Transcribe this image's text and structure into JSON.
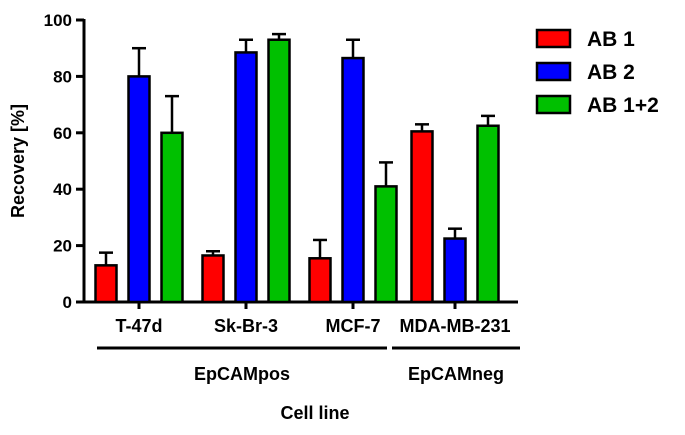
{
  "chart_data": {
    "type": "bar",
    "categories": [
      "T-47d",
      "Sk-Br-3",
      "MCF-7",
      "MDA-MB-231"
    ],
    "groups": [
      {
        "label": "EpCAMpos",
        "categories": [
          "T-47d",
          "Sk-Br-3",
          "MCF-7"
        ]
      },
      {
        "label": "EpCAMneg",
        "categories": [
          "MDA-MB-231"
        ]
      }
    ],
    "series": [
      {
        "name": "AB 1",
        "color": "#ff0000",
        "values": [
          13,
          16.5,
          15.5,
          60.5
        ],
        "errors": [
          4.5,
          1.5,
          6.5,
          2.5
        ]
      },
      {
        "name": "AB 2",
        "color": "#0000ff",
        "values": [
          80,
          88.5,
          86.5,
          22.5
        ],
        "errors": [
          10,
          4.5,
          6.5,
          3.5
        ]
      },
      {
        "name": "AB 1+2",
        "color": "#00c000",
        "values": [
          60,
          93,
          41,
          62.5
        ],
        "errors": [
          13,
          2,
          8.5,
          3.5
        ]
      }
    ],
    "xlabel": "Cell line",
    "ylabel": "Recovery [%]",
    "ylim": [
      0,
      100
    ],
    "yticks": [
      0,
      20,
      40,
      60,
      80,
      100
    ],
    "error_bars": "upper",
    "legend_position": "top-right",
    "grid": false
  }
}
